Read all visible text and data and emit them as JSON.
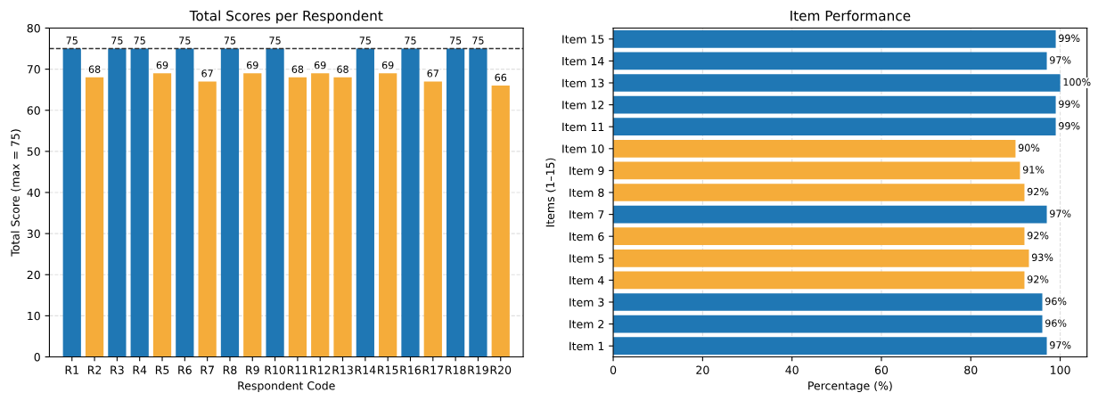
{
  "chart_data": [
    {
      "type": "bar",
      "title": "Total Scores per Respondent",
      "xlabel": "Respondent Code",
      "ylabel": "Total Score (max = 75)",
      "categories": [
        "R1",
        "R2",
        "R3",
        "R4",
        "R5",
        "R6",
        "R7",
        "R8",
        "R9",
        "R10",
        "R11",
        "R12",
        "R13",
        "R14",
        "R15",
        "R16",
        "R17",
        "R18",
        "R19",
        "R20"
      ],
      "values": [
        75,
        68,
        75,
        75,
        69,
        75,
        67,
        75,
        69,
        75,
        68,
        69,
        68,
        75,
        69,
        75,
        67,
        75,
        75,
        66
      ],
      "colors": [
        "#1f77b4",
        "#f5ac3a",
        "#1f77b4",
        "#1f77b4",
        "#f5ac3a",
        "#1f77b4",
        "#f5ac3a",
        "#1f77b4",
        "#f5ac3a",
        "#1f77b4",
        "#f5ac3a",
        "#f5ac3a",
        "#f5ac3a",
        "#1f77b4",
        "#f5ac3a",
        "#1f77b4",
        "#f5ac3a",
        "#1f77b4",
        "#1f77b4",
        "#f5ac3a"
      ],
      "ylim": [
        0,
        80
      ],
      "yticks": [
        0,
        10,
        20,
        30,
        40,
        50,
        60,
        70,
        80
      ],
      "grid": "y",
      "data_labels": true,
      "ref_lines": [
        {
          "axis": "y",
          "value": 75,
          "label": null,
          "color": "#333333",
          "line_style": "dashed"
        }
      ]
    },
    {
      "type": "bar",
      "orientation": "horizontal",
      "title": "Item Performance",
      "xlabel": "Percentage (%)",
      "ylabel": "Items (1–15)",
      "categories": [
        "Item 15",
        "Item 14",
        "Item 13",
        "Item 12",
        "Item 11",
        "Item 10",
        "Item 9",
        "Item 8",
        "Item 7",
        "Item 6",
        "Item 5",
        "Item 4",
        "Item 3",
        "Item 2",
        "Item 1"
      ],
      "values": [
        99,
        97,
        100,
        99,
        99,
        90,
        91,
        92,
        97,
        92,
        93,
        92,
        96,
        96,
        97
      ],
      "value_labels": [
        "99%",
        "97%",
        "100%",
        "99%",
        "99%",
        "90%",
        "91%",
        "92%",
        "97%",
        "92%",
        "93%",
        "92%",
        "96%",
        "96%",
        "97%"
      ],
      "colors": [
        "#1f77b4",
        "#1f77b4",
        "#1f77b4",
        "#1f77b4",
        "#1f77b4",
        "#f5ac3a",
        "#f5ac3a",
        "#f5ac3a",
        "#1f77b4",
        "#f5ac3a",
        "#f5ac3a",
        "#f5ac3a",
        "#1f77b4",
        "#1f77b4",
        "#1f77b4"
      ],
      "xlim": [
        0,
        106
      ],
      "xticks": [
        0,
        20,
        40,
        60,
        80,
        100
      ],
      "grid": "x"
    }
  ]
}
